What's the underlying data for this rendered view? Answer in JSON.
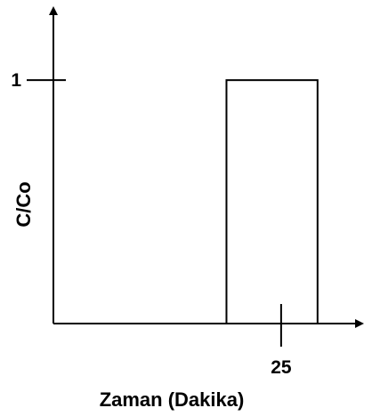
{
  "chart_data": {
    "type": "bar",
    "title": "",
    "xlabel": "Zaman (Dakika)",
    "ylabel": "C/Co",
    "x_ticks": [
      {
        "value": 25,
        "label": "25"
      }
    ],
    "y_ticks": [
      {
        "value": 1,
        "label": "1"
      }
    ],
    "pulse": {
      "x_start": 19,
      "x_end": 29,
      "y": 1
    },
    "xlim": [
      0,
      34
    ],
    "ylim": [
      0,
      1.3
    ],
    "grid": false,
    "legend": "none"
  }
}
